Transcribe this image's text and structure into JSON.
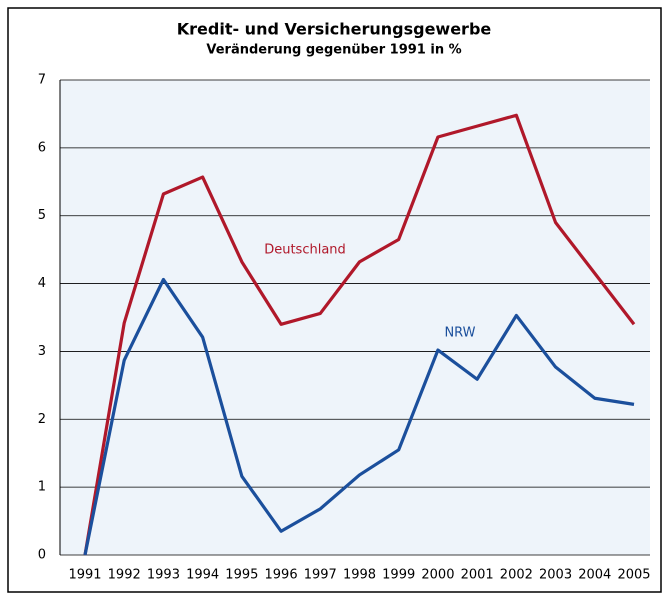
{
  "chart_data": {
    "type": "line",
    "title": "Kredit- und Versicherungsgewerbe",
    "subtitle": "Veränderung gegenüber 1991 in %",
    "categories": [
      "1991",
      "1992",
      "1993",
      "1994",
      "1995",
      "1996",
      "1997",
      "1998",
      "1999",
      "2000",
      "2001",
      "2002",
      "2003",
      "2004",
      "2005"
    ],
    "series": [
      {
        "name": "Deutschland",
        "color": "#b0182a",
        "values": [
          0,
          3.42,
          5.32,
          5.57,
          4.32,
          3.4,
          3.56,
          4.32,
          4.65,
          6.16,
          6.32,
          6.48,
          4.9,
          4.15,
          3.4
        ]
      },
      {
        "name": "NRW",
        "color": "#1b4f9c",
        "values": [
          0,
          2.87,
          4.06,
          3.21,
          1.16,
          0.35,
          0.68,
          1.18,
          1.55,
          3.02,
          2.59,
          3.53,
          2.77,
          2.31,
          2.22
        ]
      }
    ],
    "ylim": [
      0,
      7
    ],
    "yticks": [
      0,
      1,
      2,
      3,
      4,
      5,
      6,
      7
    ],
    "grid": true
  }
}
